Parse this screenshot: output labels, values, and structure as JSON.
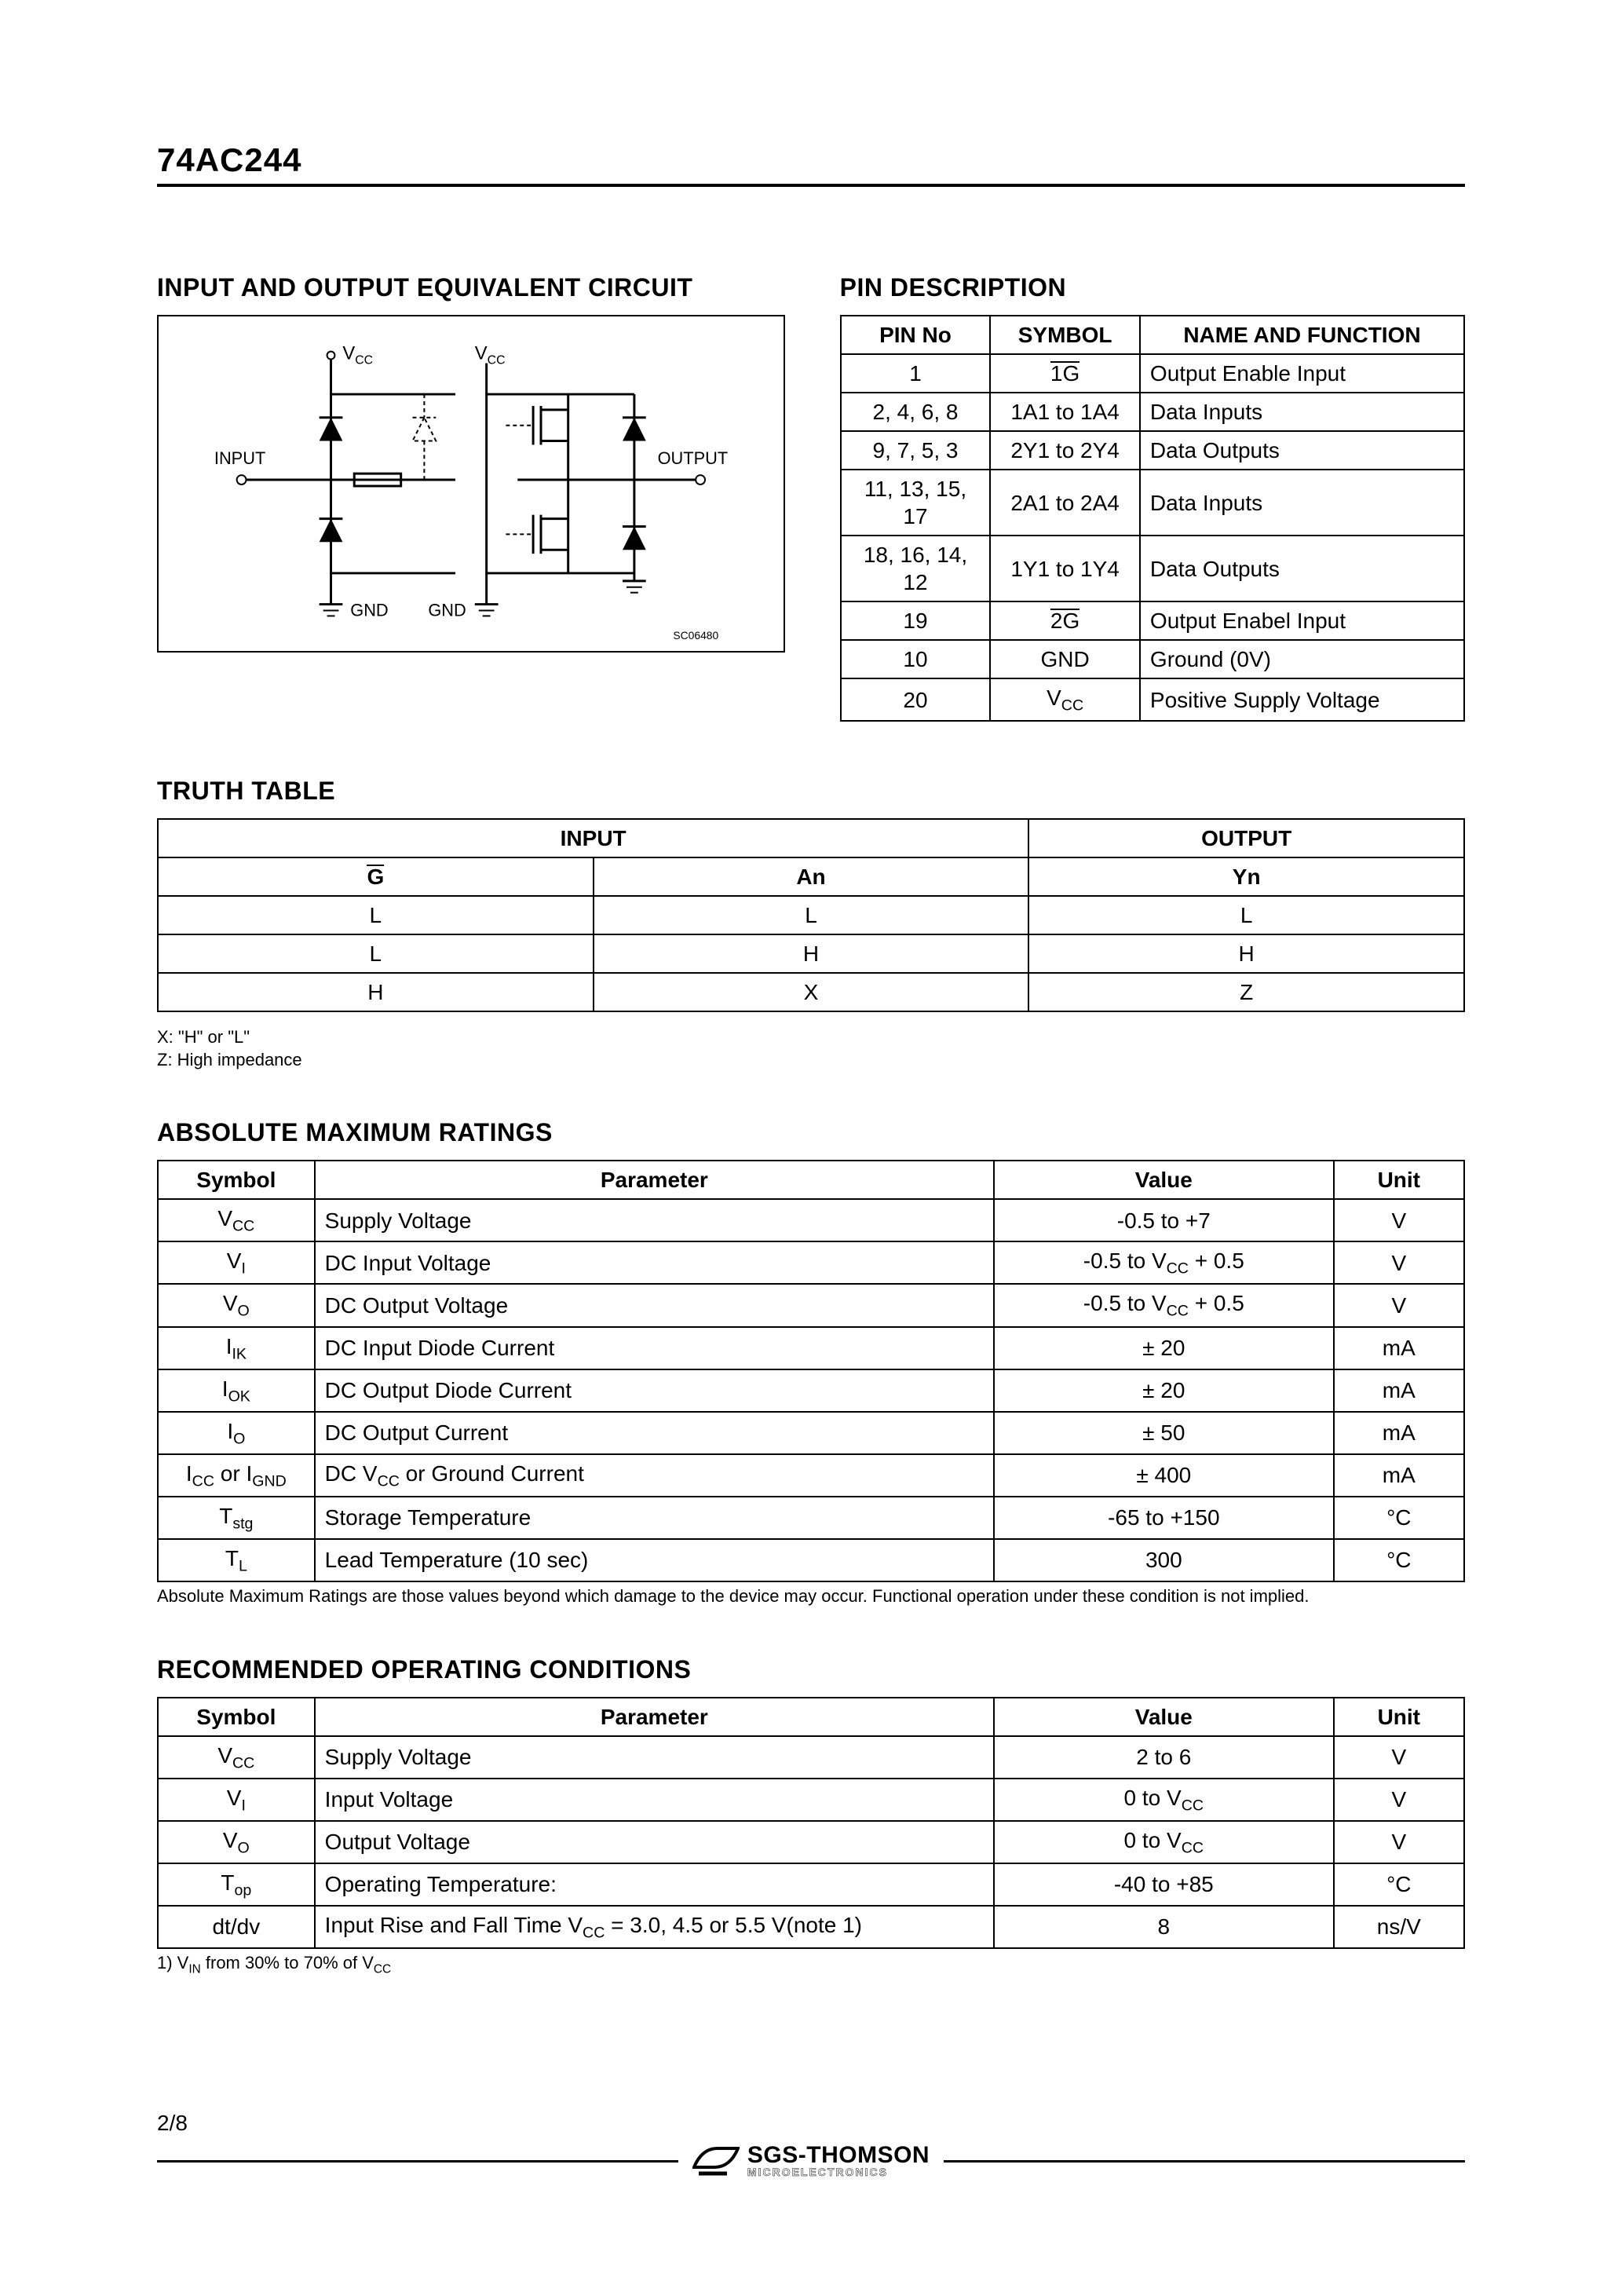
{
  "header": {
    "part_number": "74AC244"
  },
  "circuit": {
    "heading": "INPUT AND OUTPUT EQUIVALENT CIRCUIT",
    "labels": {
      "vcc1": "V",
      "vcc1_sub": "CC",
      "vcc2": "V",
      "vcc2_sub": "CC",
      "input": "INPUT",
      "output": "OUTPUT",
      "gnd1": "GND",
      "gnd2": "GND",
      "code": "SC06480"
    }
  },
  "pin": {
    "heading": "PIN DESCRIPTION",
    "headers": [
      "PIN No",
      "SYMBOL",
      "NAME AND FUNCTION"
    ],
    "rows": [
      {
        "no": "1",
        "sym_overbar": "1G",
        "func": "Output Enable Input"
      },
      {
        "no": "2, 4, 6, 8",
        "sym": "1A1 to 1A4",
        "func": "Data Inputs"
      },
      {
        "no": "9, 7, 5, 3",
        "sym": "2Y1 to 2Y4",
        "func": "Data Outputs"
      },
      {
        "no": "11, 13, 15, 17",
        "sym": "2A1 to 2A4",
        "func": "Data Inputs"
      },
      {
        "no": "18, 16, 14, 12",
        "sym": "1Y1 to 1Y4",
        "func": "Data Outputs"
      },
      {
        "no": "19",
        "sym_overbar": "2G",
        "func": "Output Enabel Input"
      },
      {
        "no": "10",
        "sym": "GND",
        "func": "Ground (0V)"
      },
      {
        "no": "20",
        "sym_vcc": true,
        "func": "Positive Supply Voltage"
      }
    ]
  },
  "truth": {
    "heading": "TRUTH TABLE",
    "group_headers": [
      "INPUT",
      "OUTPUT"
    ],
    "sub_headers": {
      "g": "G",
      "an": "An",
      "yn": "Yn"
    },
    "rows": [
      [
        "L",
        "L",
        "L"
      ],
      [
        "L",
        "H",
        "H"
      ],
      [
        "H",
        "X",
        "Z"
      ]
    ],
    "note1": "X: \"H\" or \"L\"",
    "note2": "Z: High impedance"
  },
  "amr": {
    "heading": "ABSOLUTE MAXIMUM RATINGS",
    "headers": [
      "Symbol",
      "Parameter",
      "Value",
      "Unit"
    ],
    "rows": [
      {
        "sym_html": "V<sub>CC</sub>",
        "param": "Supply Voltage",
        "val": "-0.5 to +7",
        "unit": "V"
      },
      {
        "sym_html": "V<sub>I</sub>",
        "param": "DC Input Voltage",
        "val_html": "-0.5 to V<sub>CC</sub> + 0.5",
        "unit": "V"
      },
      {
        "sym_html": "V<sub>O</sub>",
        "param": "DC Output Voltage",
        "val_html": "-0.5 to V<sub>CC</sub> + 0.5",
        "unit": "V"
      },
      {
        "sym_html": "I<sub>IK</sub>",
        "param": "DC Input Diode Current",
        "val": "± 20",
        "unit": "mA"
      },
      {
        "sym_html": "I<sub>OK</sub>",
        "param": "DC Output Diode Current",
        "val": "± 20",
        "unit": "mA"
      },
      {
        "sym_html": "I<sub>O</sub>",
        "param": "DC Output Current",
        "val": "± 50",
        "unit": "mA"
      },
      {
        "sym_html": "I<sub>CC</sub> or I<sub>GND</sub>",
        "param_html": "DC V<sub>CC</sub> or Ground Current",
        "val": "± 400",
        "unit": "mA"
      },
      {
        "sym_html": "T<sub>stg</sub>",
        "param": "Storage Temperature",
        "val": "-65 to +150",
        "unit_html": "°C"
      },
      {
        "sym_html": "T<sub>L</sub>",
        "param": "Lead Temperature (10 sec)",
        "val": "300",
        "unit_html": "°C"
      }
    ],
    "footnote": "Absolute Maximum Ratings are those values beyond which damage to the device may occur. Functional operation under these condition is not implied."
  },
  "roc": {
    "heading": "RECOMMENDED OPERATING CONDITIONS",
    "headers": [
      "Symbol",
      "Parameter",
      "Value",
      "Unit"
    ],
    "rows": [
      {
        "sym_html": "V<sub>CC</sub>",
        "param": "Supply Voltage",
        "val": "2 to 6",
        "unit": "V"
      },
      {
        "sym_html": "V<sub>I</sub>",
        "param": "Input Voltage",
        "val_html": "0 to V<sub>CC</sub>",
        "unit": "V"
      },
      {
        "sym_html": "V<sub>O</sub>",
        "param": "Output Voltage",
        "val_html": "0 to V<sub>CC</sub>",
        "unit": "V"
      },
      {
        "sym_html": "T<sub>op</sub>",
        "param": "Operating Temperature:",
        "val": "-40 to +85",
        "unit_html": "°C"
      },
      {
        "sym": "dt/dv",
        "param_html": "Input Rise and Fall Time V<sub>CC</sub> = 3.0, 4.5 or 5.5 V(note 1)",
        "val": "8",
        "unit": "ns/V"
      }
    ],
    "footnote_html": "1) V<sub>IN</sub> from 30% to 70% of V<sub>CC</sub>"
  },
  "footer": {
    "page": "2/8",
    "logo_main": "SGS-THOMSON",
    "logo_sub": "MICROELECTRONICS"
  }
}
